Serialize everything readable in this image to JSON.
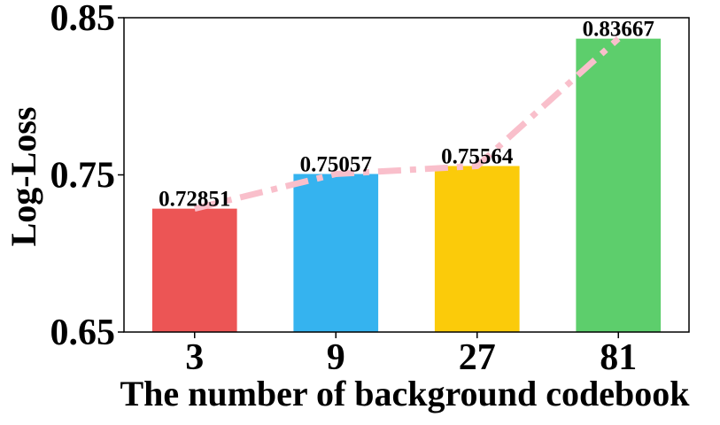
{
  "chart_data": {
    "type": "bar",
    "categories": [
      "3",
      "9",
      "27",
      "81"
    ],
    "values": [
      0.72851,
      0.75057,
      0.75564,
      0.83667
    ],
    "data_labels": [
      "0.72851",
      "0.75057",
      "0.75564",
      "0.83667"
    ],
    "bar_colors": [
      "#EC5555",
      "#35B3EF",
      "#FBCB0A",
      "#5DCE6C"
    ],
    "trend_line": {
      "style": "dash-dot",
      "color": "#F9BFCB",
      "values": [
        0.72851,
        0.75057,
        0.75564,
        0.83667
      ]
    },
    "xlabel": "The number of background codebook",
    "ylabel": "Log-Loss",
    "ylim": [
      0.65,
      0.85
    ],
    "yticks": [
      0.65,
      0.75,
      0.85
    ],
    "ytick_labels": [
      "0.65",
      "0.75",
      "0.85"
    ],
    "grid": false,
    "legend": "none"
  }
}
